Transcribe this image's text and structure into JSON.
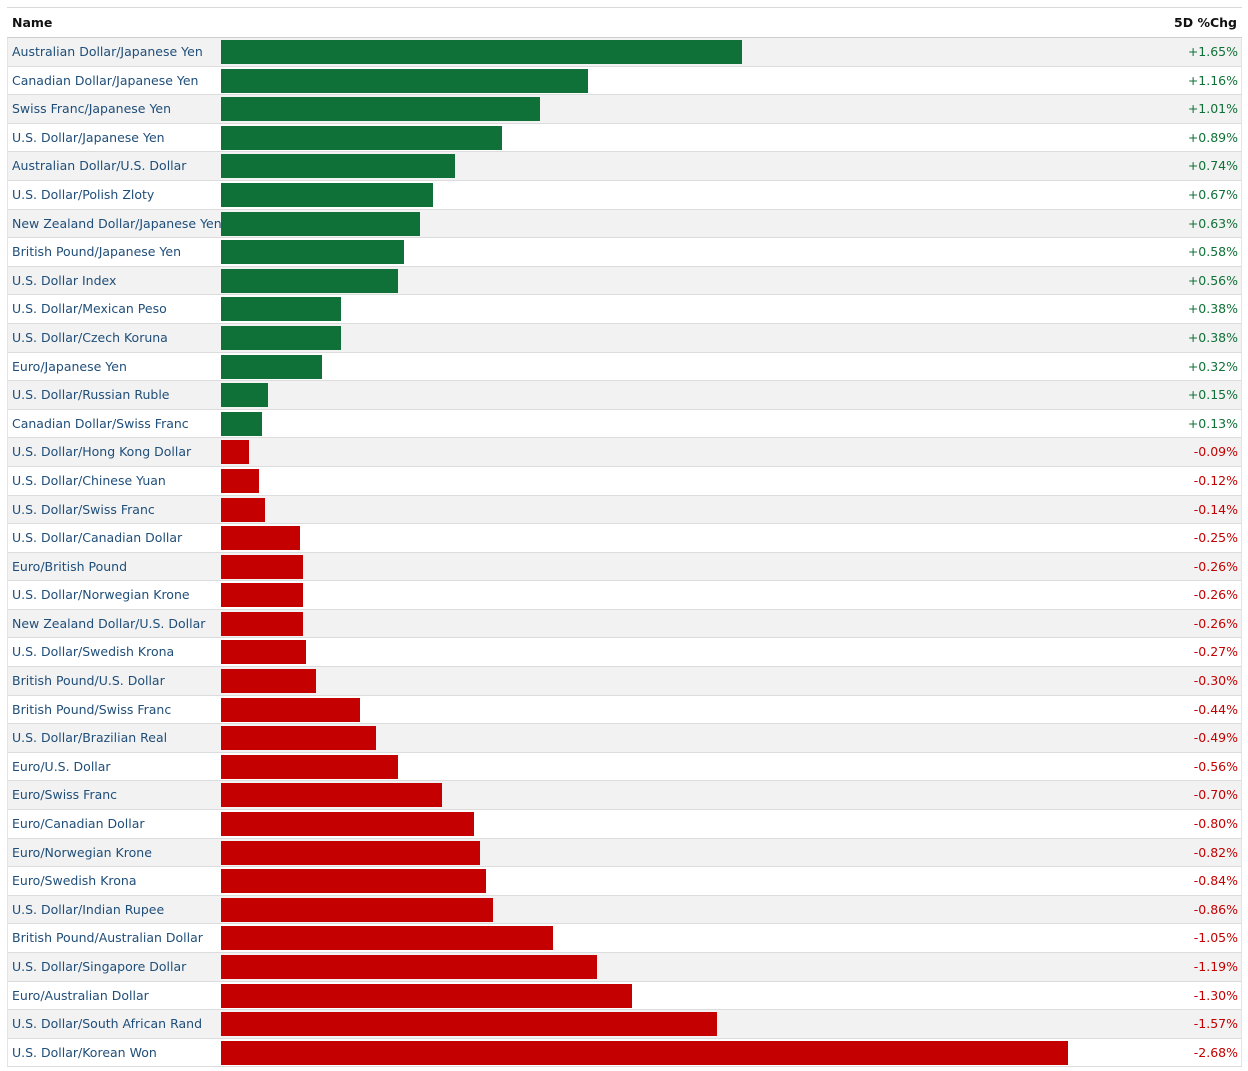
{
  "header": {
    "name_label": "Name",
    "change_label": "5D %Chg"
  },
  "colors": {
    "positive": "#0f7137",
    "negative": "#c40000",
    "link": "#1f4e79"
  },
  "chart_data": {
    "type": "bar",
    "orientation": "horizontal",
    "value_unit": "%",
    "title": "",
    "xlabel": "",
    "ylabel": "",
    "rows": [
      {
        "name": "Australian Dollar/Japanese Yen",
        "value": 1.65,
        "label": "+1.65%"
      },
      {
        "name": "Canadian Dollar/Japanese Yen",
        "value": 1.16,
        "label": "+1.16%"
      },
      {
        "name": "Swiss Franc/Japanese Yen",
        "value": 1.01,
        "label": "+1.01%"
      },
      {
        "name": "U.S. Dollar/Japanese Yen",
        "value": 0.89,
        "label": "+0.89%"
      },
      {
        "name": "Australian Dollar/U.S. Dollar",
        "value": 0.74,
        "label": "+0.74%"
      },
      {
        "name": "U.S. Dollar/Polish Zloty",
        "value": 0.67,
        "label": "+0.67%"
      },
      {
        "name": "New Zealand Dollar/Japanese Yen",
        "value": 0.63,
        "label": "+0.63%"
      },
      {
        "name": "British Pound/Japanese Yen",
        "value": 0.58,
        "label": "+0.58%"
      },
      {
        "name": "U.S. Dollar Index",
        "value": 0.56,
        "label": "+0.56%"
      },
      {
        "name": "U.S. Dollar/Mexican Peso",
        "value": 0.38,
        "label": "+0.38%"
      },
      {
        "name": "U.S. Dollar/Czech Koruna",
        "value": 0.38,
        "label": "+0.38%"
      },
      {
        "name": "Euro/Japanese Yen",
        "value": 0.32,
        "label": "+0.32%"
      },
      {
        "name": "U.S. Dollar/Russian Ruble",
        "value": 0.15,
        "label": "+0.15%"
      },
      {
        "name": "Canadian Dollar/Swiss Franc",
        "value": 0.13,
        "label": "+0.13%"
      },
      {
        "name": "U.S. Dollar/Hong Kong Dollar",
        "value": -0.09,
        "label": "-0.09%"
      },
      {
        "name": "U.S. Dollar/Chinese Yuan",
        "value": -0.12,
        "label": "-0.12%"
      },
      {
        "name": "U.S. Dollar/Swiss Franc",
        "value": -0.14,
        "label": "-0.14%"
      },
      {
        "name": "U.S. Dollar/Canadian Dollar",
        "value": -0.25,
        "label": "-0.25%"
      },
      {
        "name": "Euro/British Pound",
        "value": -0.26,
        "label": "-0.26%"
      },
      {
        "name": "U.S. Dollar/Norwegian Krone",
        "value": -0.26,
        "label": "-0.26%"
      },
      {
        "name": "New Zealand Dollar/U.S. Dollar",
        "value": -0.26,
        "label": "-0.26%"
      },
      {
        "name": "U.S. Dollar/Swedish Krona",
        "value": -0.27,
        "label": "-0.27%"
      },
      {
        "name": "British Pound/U.S. Dollar",
        "value": -0.3,
        "label": "-0.30%"
      },
      {
        "name": "British Pound/Swiss Franc",
        "value": -0.44,
        "label": "-0.44%"
      },
      {
        "name": "U.S. Dollar/Brazilian Real",
        "value": -0.49,
        "label": "-0.49%"
      },
      {
        "name": "Euro/U.S. Dollar",
        "value": -0.56,
        "label": "-0.56%"
      },
      {
        "name": "Euro/Swiss Franc",
        "value": -0.7,
        "label": "-0.70%"
      },
      {
        "name": "Euro/Canadian Dollar",
        "value": -0.8,
        "label": "-0.80%"
      },
      {
        "name": "Euro/Norwegian Krone",
        "value": -0.82,
        "label": "-0.82%"
      },
      {
        "name": "Euro/Swedish Krona",
        "value": -0.84,
        "label": "-0.84%"
      },
      {
        "name": "U.S. Dollar/Indian Rupee",
        "value": -0.86,
        "label": "-0.86%"
      },
      {
        "name": "British Pound/Australian Dollar",
        "value": -1.05,
        "label": "-1.05%"
      },
      {
        "name": "U.S. Dollar/Singapore Dollar",
        "value": -1.19,
        "label": "-1.19%"
      },
      {
        "name": "Euro/Australian Dollar",
        "value": -1.3,
        "label": "-1.30%"
      },
      {
        "name": "U.S. Dollar/South African Rand",
        "value": -1.57,
        "label": "-1.57%"
      },
      {
        "name": "U.S. Dollar/Korean Won",
        "value": -2.68,
        "label": "-2.68%"
      }
    ]
  }
}
